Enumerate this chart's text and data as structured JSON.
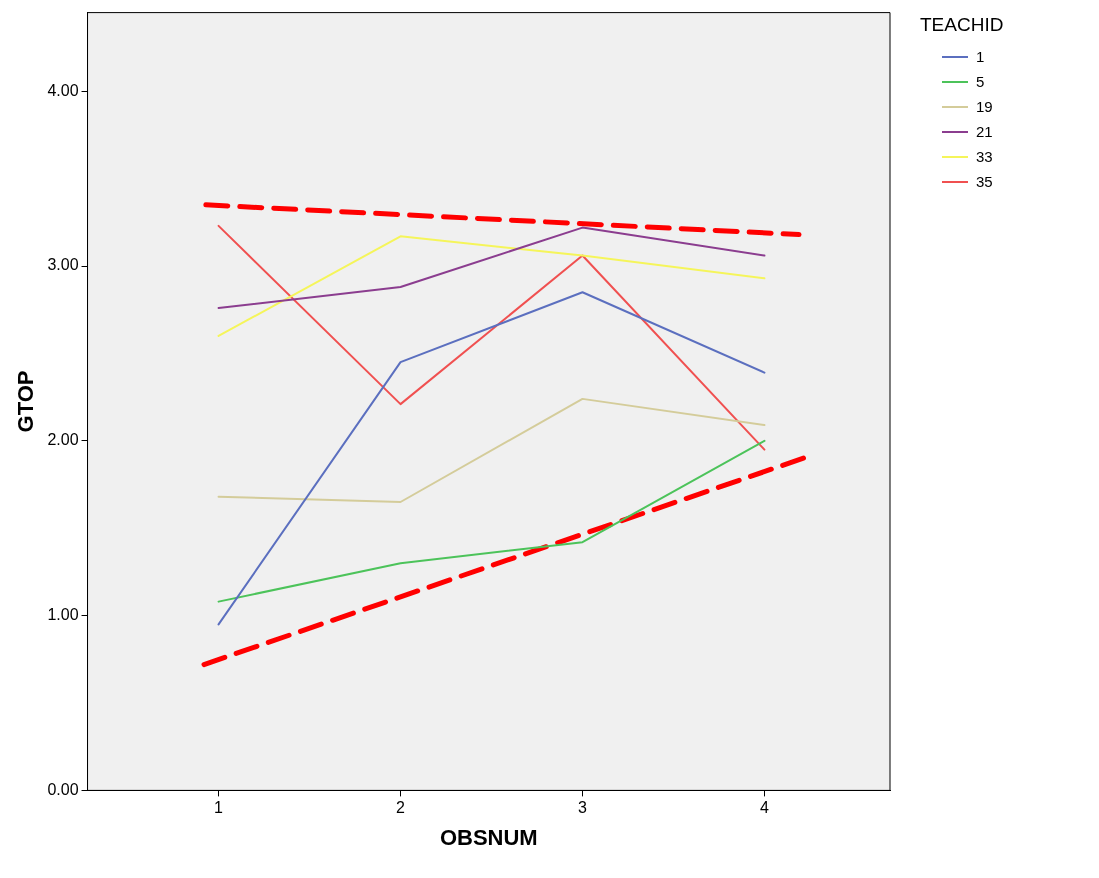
{
  "chart_data": {
    "type": "line",
    "xlabel": "OBSNUM",
    "ylabel": "GTOP",
    "legend_title": "TEACHID",
    "legend": "right",
    "grid": false,
    "marker": "none",
    "xlim": [
      0.28,
      4.69
    ],
    "xticks": [
      1,
      2,
      3,
      4
    ],
    "ylim": [
      0,
      4.45
    ],
    "yticks": [
      {
        "value": 0,
        "label": "0.00"
      },
      {
        "value": 1,
        "label": "1.00"
      },
      {
        "value": 2,
        "label": "2.00"
      },
      {
        "value": 3,
        "label": "3.00"
      },
      {
        "value": 4,
        "label": "4.00"
      }
    ],
    "x": [
      1,
      2,
      3,
      4
    ],
    "series": [
      {
        "name": "1",
        "color": "#5b6fbf",
        "values": [
          0.95,
          2.45,
          2.85,
          2.39
        ]
      },
      {
        "name": "5",
        "color": "#4cc35a",
        "values": [
          1.08,
          1.3,
          1.42,
          2.0
        ]
      },
      {
        "name": "19",
        "color": "#d4cc9a",
        "values": [
          1.68,
          1.65,
          2.24,
          2.09
        ]
      },
      {
        "name": "21",
        "color": "#8b3d8f",
        "values": [
          2.76,
          2.88,
          3.22,
          3.06
        ]
      },
      {
        "name": "33",
        "color": "#f5f55a",
        "values": [
          2.6,
          3.17,
          3.06,
          2.93
        ]
      },
      {
        "name": "35",
        "color": "#f05050",
        "values": [
          3.23,
          2.21,
          3.06,
          1.95
        ]
      },
      {
        "type": "line",
        "color": "#ff0000",
        "line_style": "dashed",
        "x": [
          0.93,
          4.19
        ],
        "values": [
          3.35,
          3.18
        ]
      },
      {
        "type": "line",
        "color": "#ff0000",
        "line_style": "dashed",
        "x": [
          0.92,
          4.24
        ],
        "values": [
          0.72,
          1.91
        ]
      }
    ]
  }
}
